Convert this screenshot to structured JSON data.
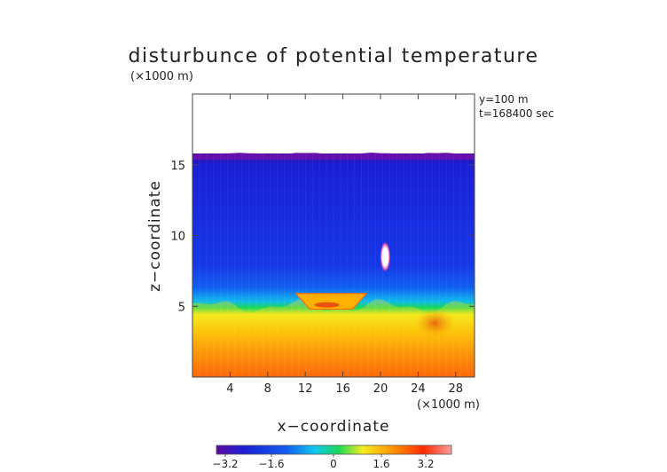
{
  "chart_data": {
    "type": "heatmap",
    "title": "disturbunce of potential temperature",
    "scale_note": "(×1000 m)",
    "annotations": [
      "y=100 m",
      "t=168400 sec"
    ],
    "xlabel": "x−coordinate",
    "ylabel": "z−coordinate",
    "x_unit_label": "(×1000 m)",
    "xlim": [
      0,
      30
    ],
    "ylim": [
      0,
      20
    ],
    "x_ticks": [
      4,
      8,
      12,
      16,
      20,
      24,
      28
    ],
    "x_tick_labels": [
      "4",
      "8",
      "12",
      "16",
      "20",
      "24",
      "28"
    ],
    "y_ticks": [
      5,
      10,
      15
    ],
    "y_tick_labels": [
      "5",
      "10",
      "15"
    ],
    "colorbar": {
      "range": [
        -4,
        4
      ],
      "ticks": [
        "−3.2",
        "−1.6",
        "0",
        "1.6",
        "3.2"
      ],
      "colormap": [
        "#5a0a9e",
        "#1a1fd6",
        "#1060f0",
        "#11c8ee",
        "#18d858",
        "#f2ee20",
        "#ff9c00",
        "#ff2a00",
        "#ff8c8c"
      ]
    },
    "field_description_values": {
      "model_top_km": 15.8,
      "inversion_height_km": 5.0,
      "upper_layer_value": -3.0,
      "lower_layer_value": 3.4,
      "bubble_center_x_km": 20.5,
      "bubble_center_z_km": 8.5
    }
  }
}
